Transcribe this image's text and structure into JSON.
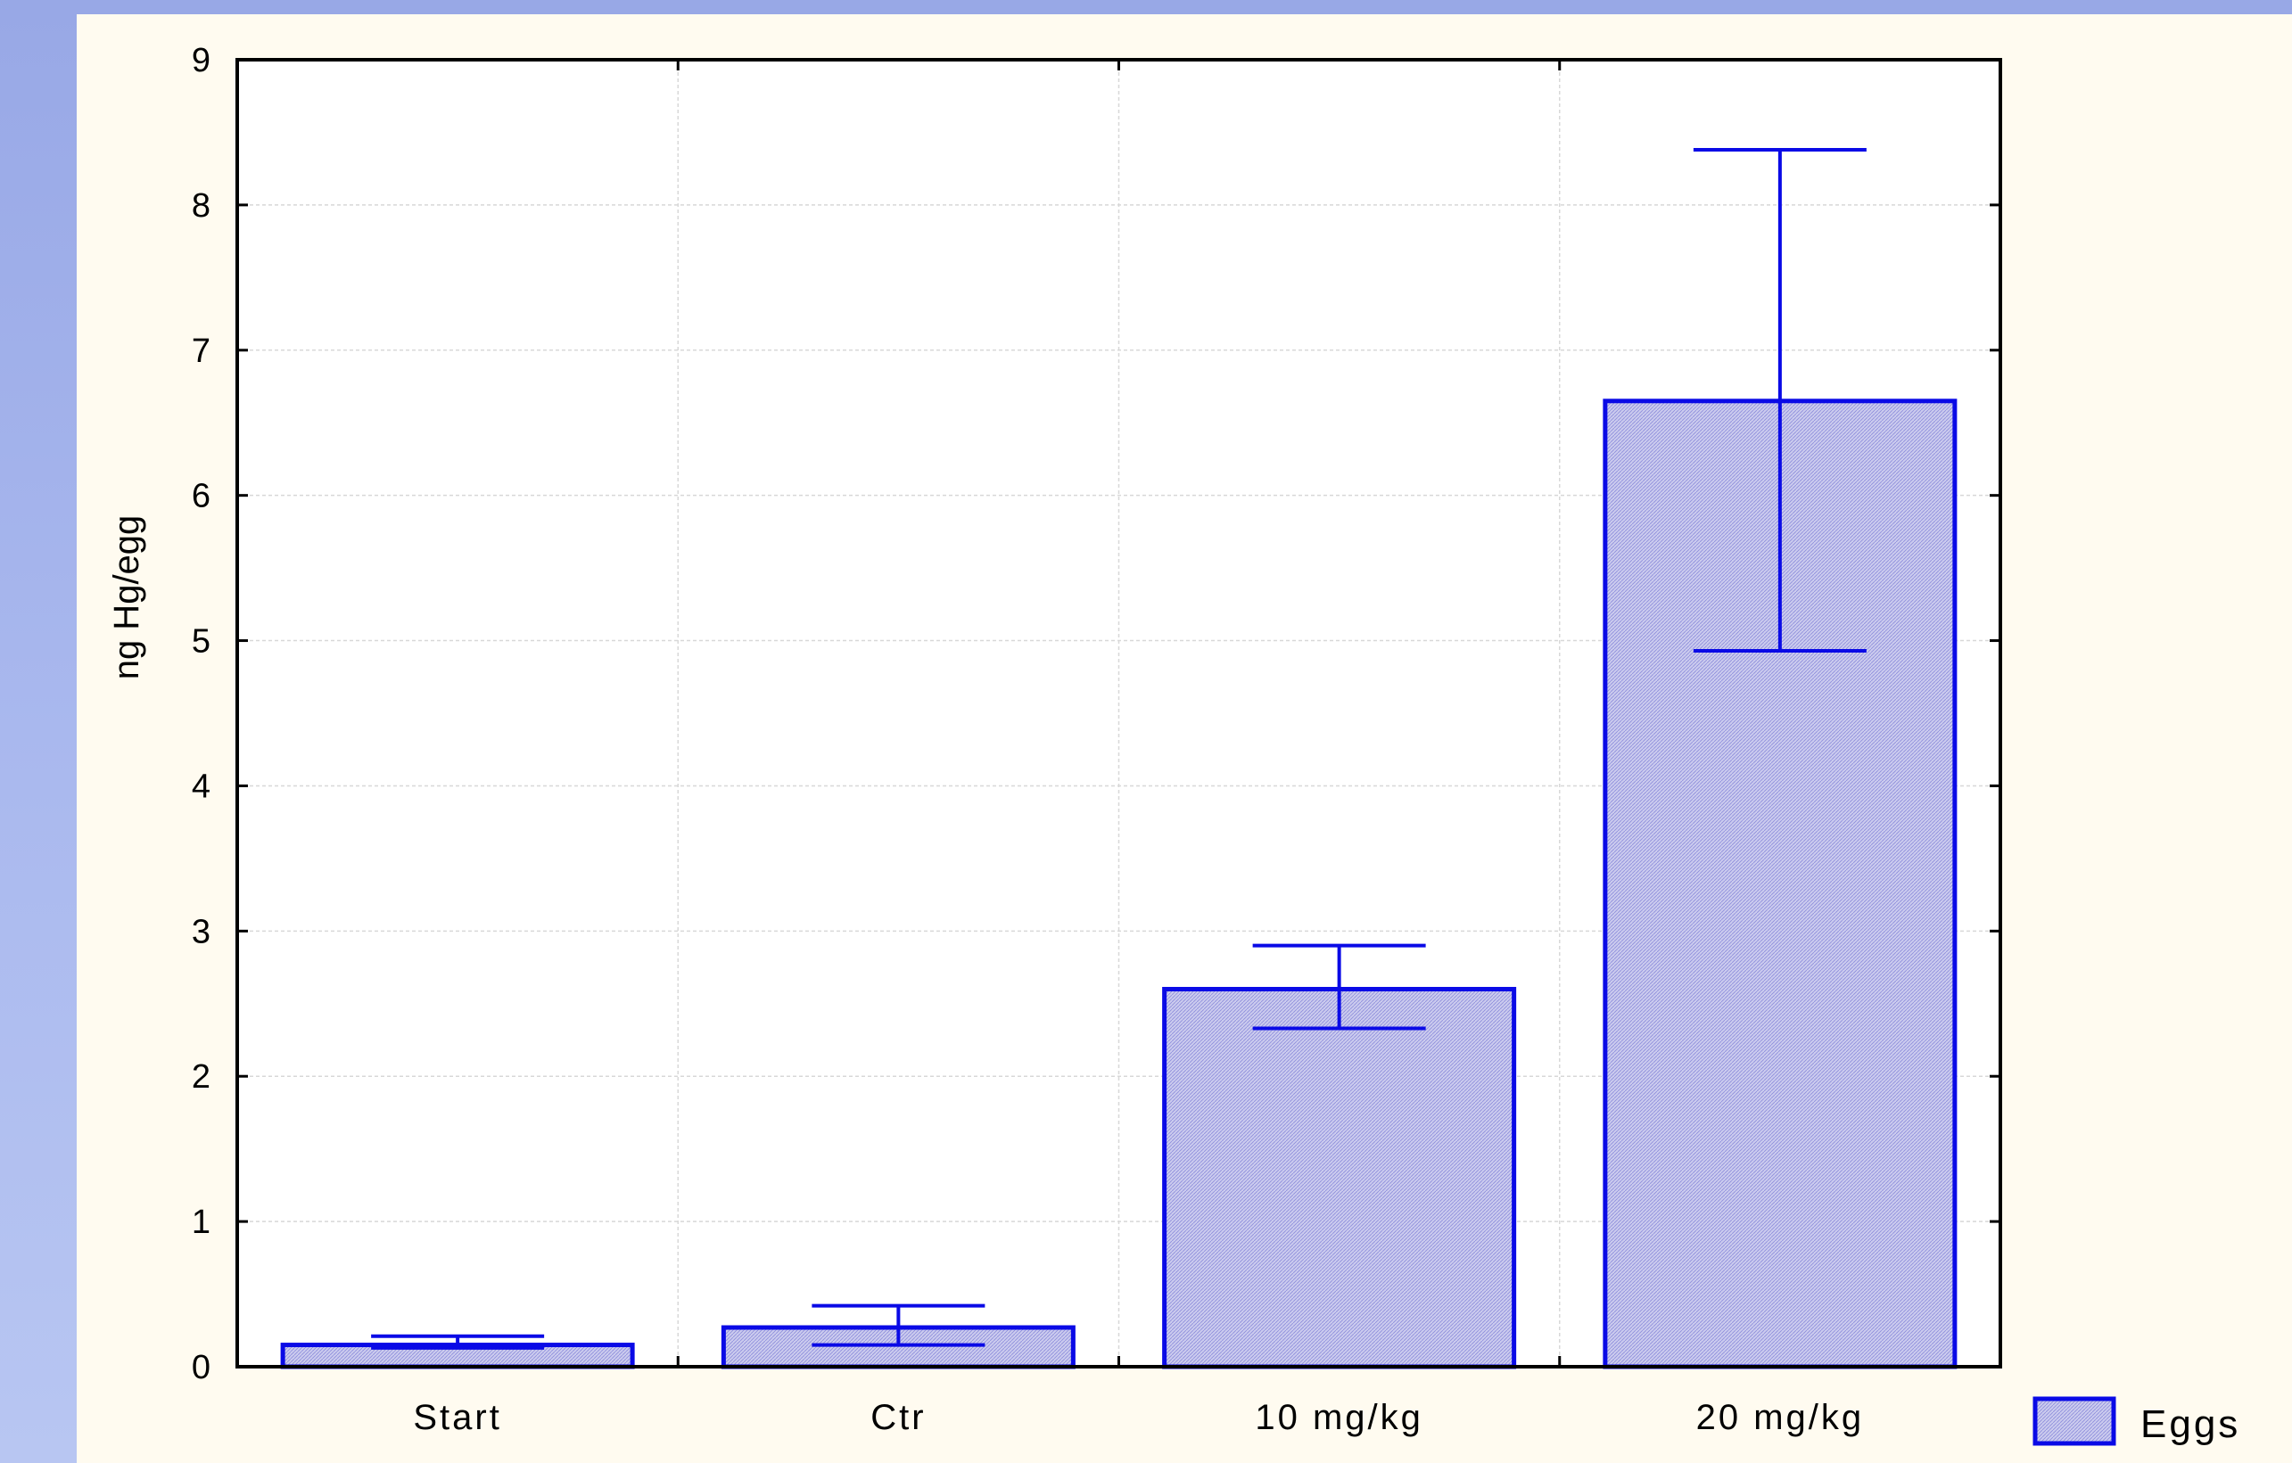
{
  "chart_data": {
    "type": "bar",
    "categories": [
      "Start",
      "Ctr",
      "10 mg/kg",
      "20 mg/kg"
    ],
    "series": [
      {
        "name": "Eggs",
        "values": [
          0.15,
          0.27,
          2.6,
          6.65
        ],
        "error_low": [
          0.13,
          0.15,
          2.33,
          4.93
        ],
        "error_high": [
          0.21,
          0.42,
          2.9,
          8.38
        ]
      }
    ],
    "xlabel": "",
    "ylabel": "ng Hg/egg",
    "ylim": [
      0,
      9
    ],
    "yticks": [
      "0",
      "1",
      "2",
      "3",
      "4",
      "5",
      "6",
      "7",
      "8",
      "9"
    ],
    "grid": true,
    "legend_position": "bottom-right",
    "colors": {
      "bar_stroke": "#0A0AE6",
      "bar_fill": "#C8C8EC",
      "background_outer": "#A4B4EC",
      "panel": "#FFFBF0",
      "plot": "#FFFFFF"
    }
  }
}
